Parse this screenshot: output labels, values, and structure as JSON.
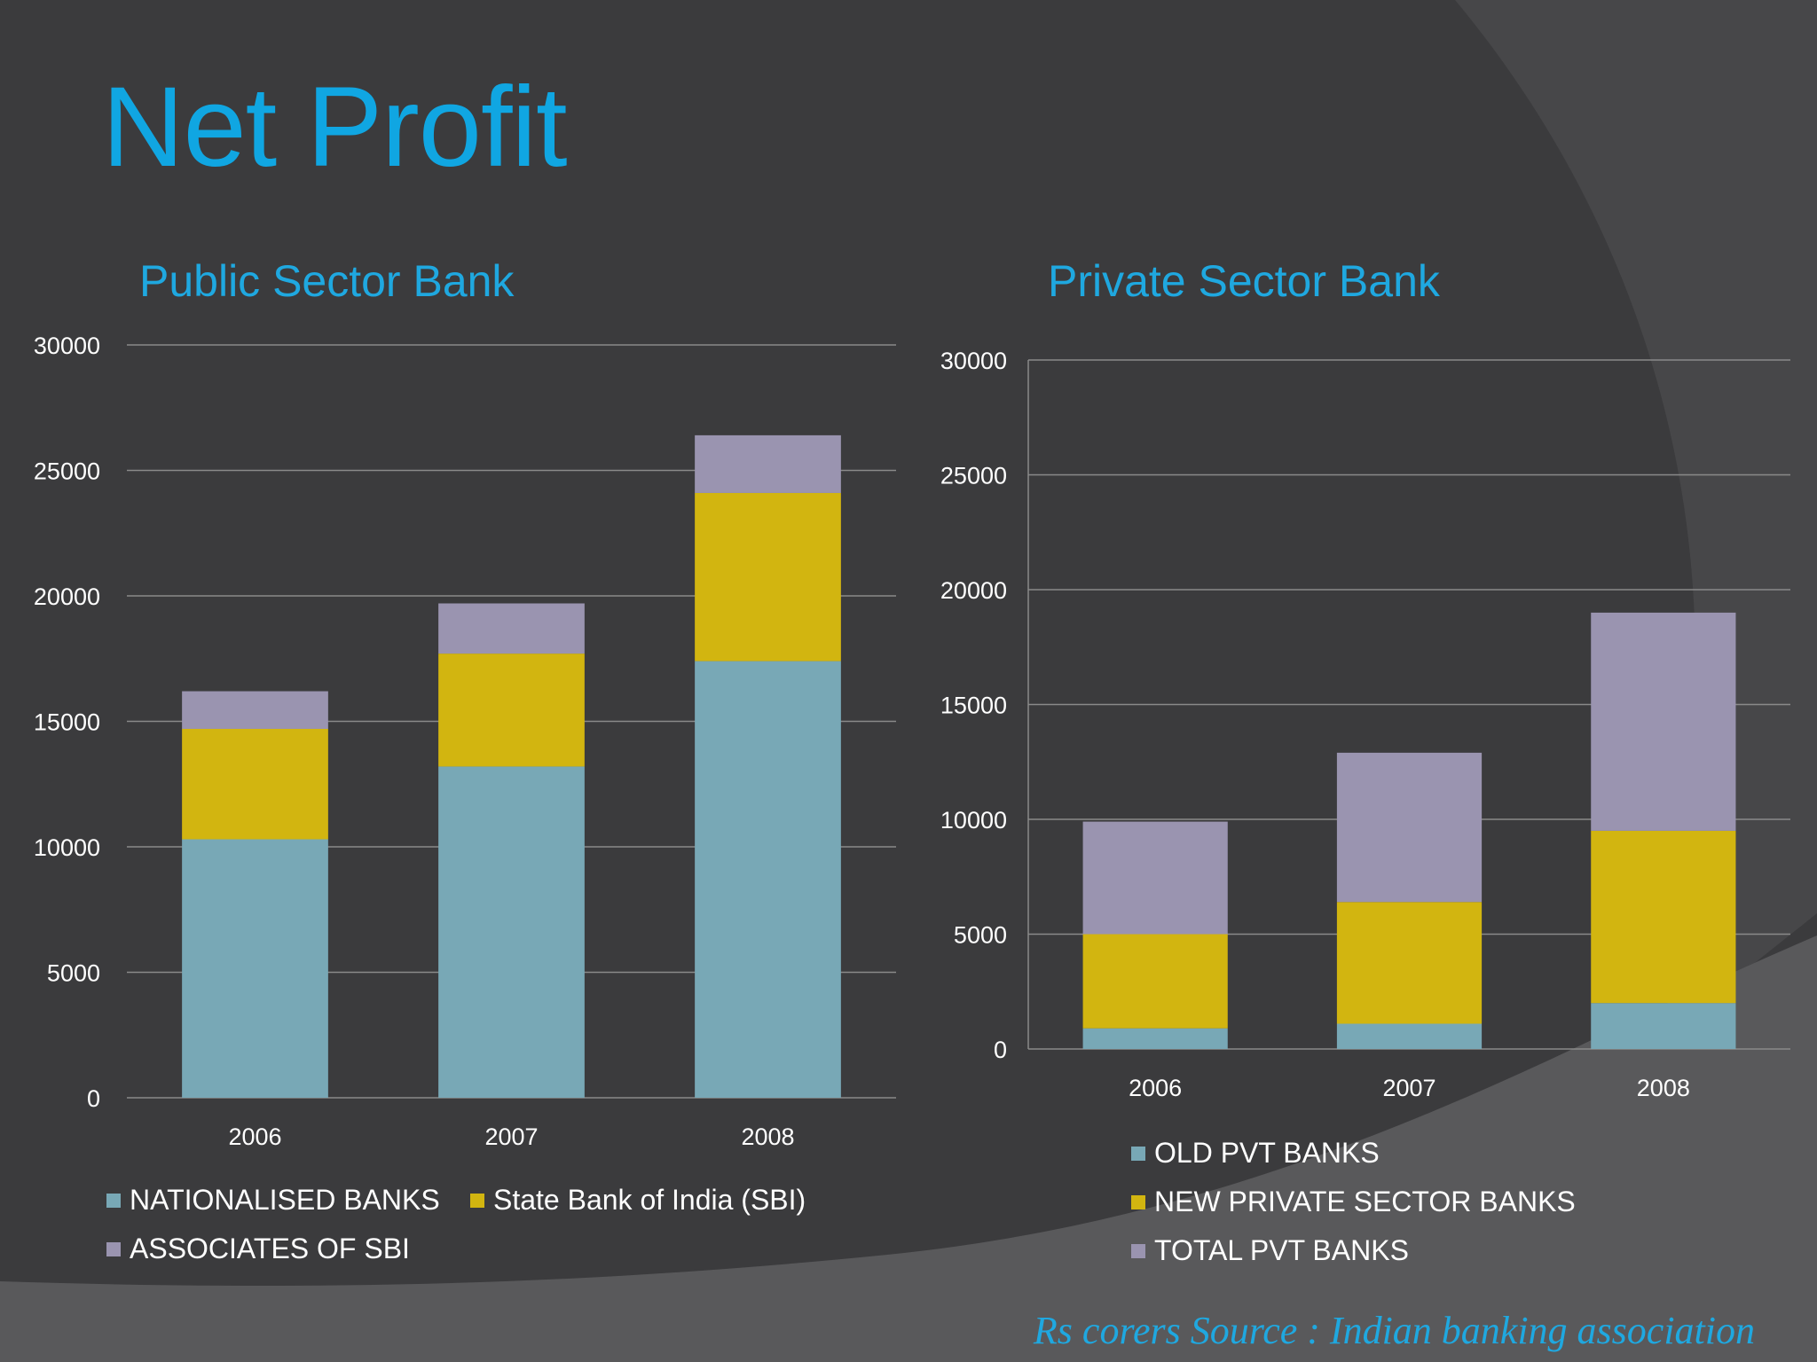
{
  "slide": {
    "title": "Net Profit",
    "source_note": "Rs corers Source : Indian banking association"
  },
  "colors": {
    "background": "#3b3b3d",
    "title": "#10a6e2",
    "series1": "#78a8b6",
    "series2": "#d2b510",
    "series3": "#9a94b0",
    "grid": "#8a8a8a"
  },
  "chart_data": [
    {
      "type": "bar",
      "stacked": true,
      "title": "Public Sector Bank",
      "categories": [
        "2006",
        "2007",
        "2008"
      ],
      "series": [
        {
          "name": "NATIONALISED BANKS",
          "values": [
            10300,
            13200,
            17400
          ]
        },
        {
          "name": "State Bank of India (SBI)",
          "values": [
            4400,
            4500,
            6700
          ]
        },
        {
          "name": "ASSOCIATES OF SBI",
          "values": [
            1500,
            2000,
            2300
          ]
        }
      ],
      "ylim": [
        0,
        30000
      ],
      "yticks": [
        "0",
        "5000",
        "10000",
        "15000",
        "20000",
        "25000",
        "30000"
      ],
      "grid": true,
      "legend_position": "bottom"
    },
    {
      "type": "bar",
      "stacked": true,
      "title": "Private Sector Bank",
      "categories": [
        "2006",
        "2007",
        "2008"
      ],
      "series": [
        {
          "name": "OLD PVT BANKS",
          "values": [
            900,
            1100,
            2000
          ]
        },
        {
          "name": "NEW PRIVATE SECTOR BANKS",
          "values": [
            4100,
            5300,
            7500
          ]
        },
        {
          "name": "TOTAL PVT BANKS",
          "values": [
            4900,
            6500,
            9500
          ]
        }
      ],
      "ylim": [
        0,
        30000
      ],
      "yticks": [
        "0",
        "5000",
        "10000",
        "15000",
        "20000",
        "25000",
        "30000"
      ],
      "grid": true,
      "legend_position": "bottom"
    }
  ]
}
